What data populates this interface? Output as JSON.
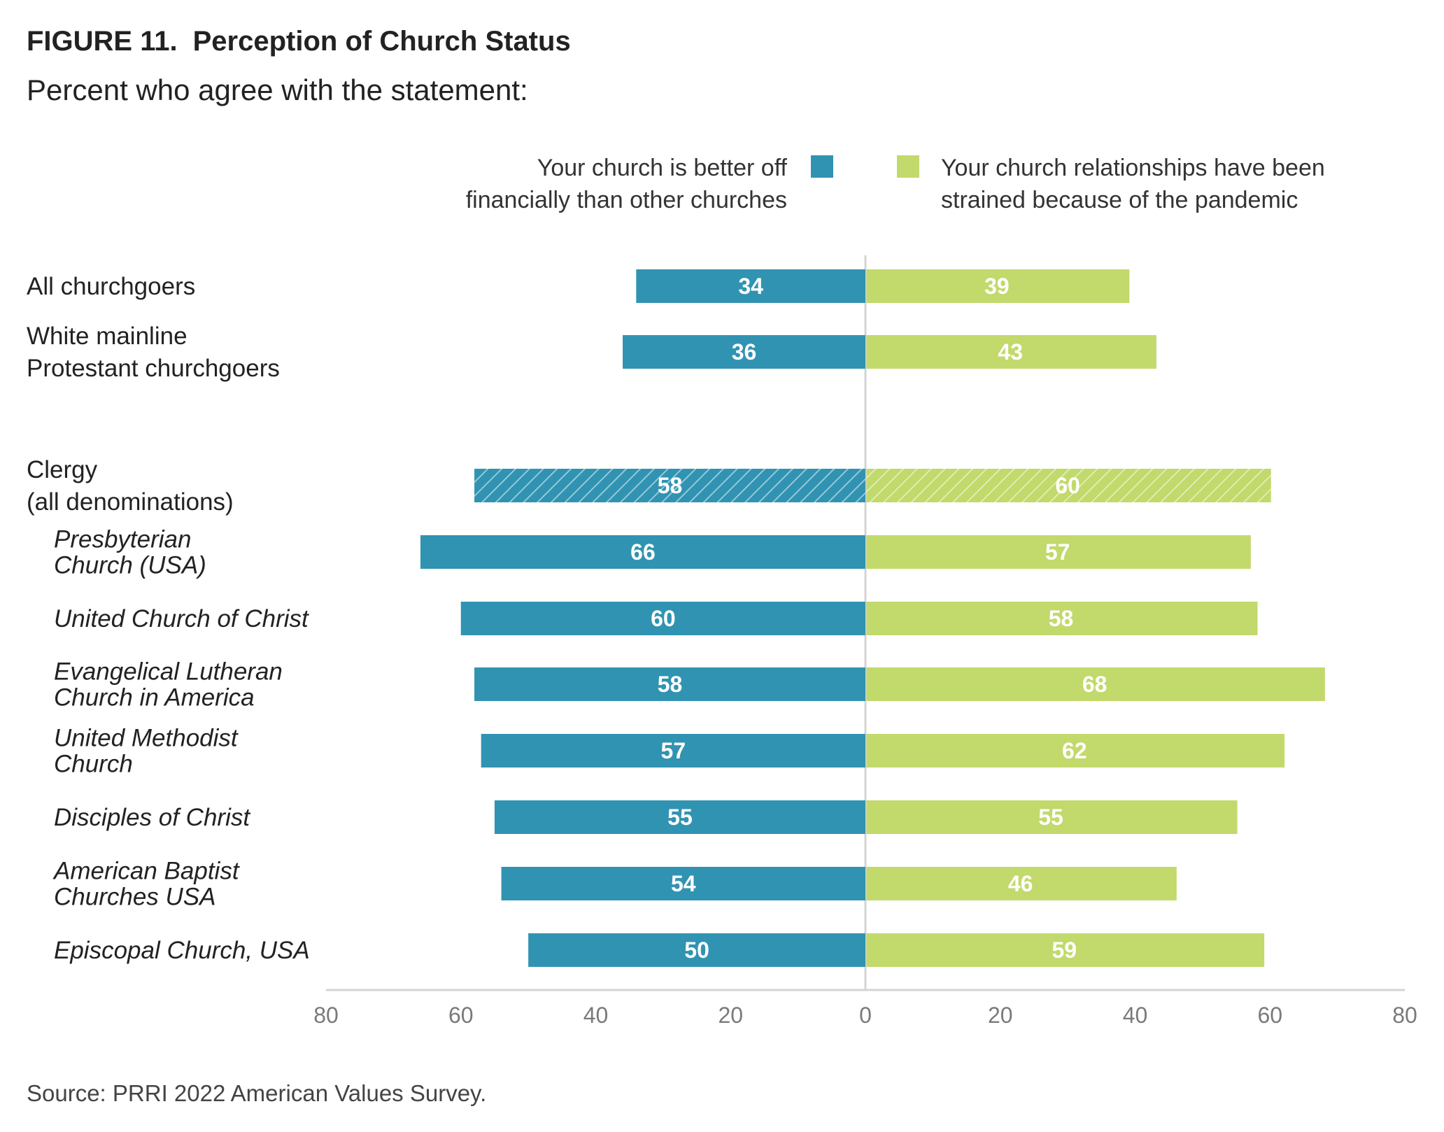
{
  "figure": {
    "label": "FIGURE 11.",
    "title": "Perception of Church Status",
    "subtitle": "Percent who agree with the statement:",
    "source": "Source: PRRI 2022 American Values Survey."
  },
  "colors": {
    "left": "#3193b2",
    "right": "#c2d96b",
    "axis": "#d4d4d4",
    "tick": "#7a7a7a"
  },
  "chart_data": {
    "type": "bar",
    "orientation": "horizontal-diverging",
    "xlim": [
      -80,
      80
    ],
    "ticks": [
      "80",
      "60",
      "40",
      "20",
      "0",
      "20",
      "40",
      "60",
      "80"
    ],
    "legend_placement": "top",
    "series": [
      {
        "name": "Your church is better off financially than other churches",
        "name_lines": [
          "Your church is better off",
          "financially than other churches"
        ],
        "side": "left"
      },
      {
        "name": "Your church relationships have been strained because of the pandemic",
        "name_lines": [
          "Your church relationships have been",
          "strained because of the pandemic"
        ],
        "side": "right"
      }
    ],
    "rows": [
      {
        "label_lines": [
          "All churchgoers"
        ],
        "italic": false,
        "hatched": false,
        "left": 34,
        "right": 39
      },
      {
        "label_lines": [
          "White mainline",
          "Protestant churchgoers"
        ],
        "italic": false,
        "hatched": false,
        "left": 36,
        "right": 43
      },
      {
        "label_lines": [
          "Clergy",
          "(all denominations)"
        ],
        "italic": false,
        "hatched": true,
        "left": 58,
        "right": 60
      },
      {
        "label_lines": [
          "Presbyterian",
          "Church (USA)"
        ],
        "italic": true,
        "hatched": false,
        "left": 66,
        "right": 57
      },
      {
        "label_lines": [
          "United Church of Christ"
        ],
        "italic": true,
        "hatched": false,
        "left": 60,
        "right": 58
      },
      {
        "label_lines": [
          "Evangelical Lutheran",
          "Church in America"
        ],
        "italic": true,
        "hatched": false,
        "left": 58,
        "right": 68
      },
      {
        "label_lines": [
          "United Methodist",
          "Church"
        ],
        "italic": true,
        "hatched": false,
        "left": 57,
        "right": 62
      },
      {
        "label_lines": [
          "Disciples of Christ"
        ],
        "italic": true,
        "hatched": false,
        "left": 55,
        "right": 55
      },
      {
        "label_lines": [
          "American Baptist",
          "Churches USA"
        ],
        "italic": true,
        "hatched": false,
        "left": 54,
        "right": 46
      },
      {
        "label_lines": [
          "Episcopal Church, USA"
        ],
        "italic": true,
        "hatched": false,
        "left": 50,
        "right": 59
      }
    ]
  }
}
